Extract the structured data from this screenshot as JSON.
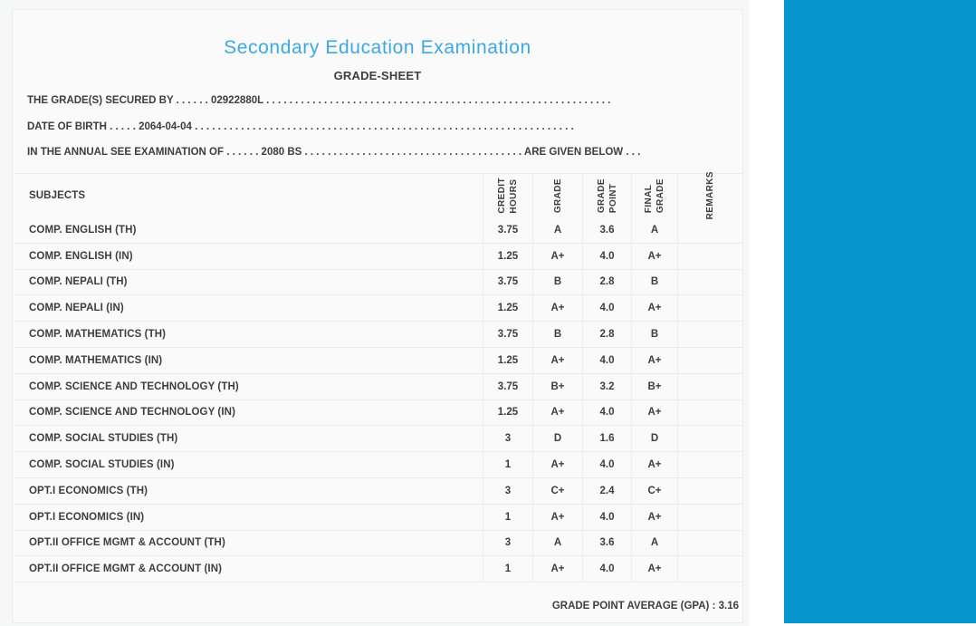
{
  "page": {
    "title": "Secondary Education Examination",
    "subtitle": "GRADE-SHEET",
    "info_lines": [
      "THE GRADE(S) SECURED BY . . . . . . 02922880L . . . . . . . . . . . . . . . . . . . . . . . . . . . . . . . . . . . . . . . . . . . . . . . . . . . . . . . . . . . .",
      "DATE OF BIRTH . . . . . 2064-04-04 . . . . . . . . . . . . . . . . . . . . . . . . . . . . . . . . . . . . . . . . . . . . . . . . . . . . . . . . . . . . . . . . . .",
      "IN THE ANNUAL SEE EXAMINATION OF . . . . . . 2080 BS . . . . . . . . . . . . . . . . . . . . . . . . . . . . . . . . . . . . . . ARE GIVEN BELOW . . ."
    ],
    "values": {
      "student_symbol_number": "02922880L",
      "date_of_birth": "2064-04-04",
      "examination_year": "2080 BS",
      "gpa": "3.16"
    }
  },
  "table": {
    "subjects_header": "SUBJECTS",
    "column_headers": [
      "CREDIT\nHOURS",
      "GRADE",
      "GRADE\nPOINT",
      "FINAL\nGRADE",
      "REMARKS"
    ],
    "rows": [
      {
        "subject": "COMP. ENGLISH (TH)",
        "credit_hours": "3.75",
        "grade": "A",
        "grade_point": "3.6",
        "final_grade": "A",
        "remarks": ""
      },
      {
        "subject": "COMP. ENGLISH (IN)",
        "credit_hours": "1.25",
        "grade": "A+",
        "grade_point": "4.0",
        "final_grade": "A+",
        "remarks": ""
      },
      {
        "subject": "COMP. NEPALI (TH)",
        "credit_hours": "3.75",
        "grade": "B",
        "grade_point": "2.8",
        "final_grade": "B",
        "remarks": ""
      },
      {
        "subject": "COMP. NEPALI (IN)",
        "credit_hours": "1.25",
        "grade": "A+",
        "grade_point": "4.0",
        "final_grade": "A+",
        "remarks": ""
      },
      {
        "subject": "COMP. MATHEMATICS (TH)",
        "credit_hours": "3.75",
        "grade": "B",
        "grade_point": "2.8",
        "final_grade": "B",
        "remarks": ""
      },
      {
        "subject": "COMP. MATHEMATICS (IN)",
        "credit_hours": "1.25",
        "grade": "A+",
        "grade_point": "4.0",
        "final_grade": "A+",
        "remarks": ""
      },
      {
        "subject": "COMP. SCIENCE AND TECHNOLOGY (TH)",
        "credit_hours": "3.75",
        "grade": "B+",
        "grade_point": "3.2",
        "final_grade": "B+",
        "remarks": ""
      },
      {
        "subject": "COMP. SCIENCE AND TECHNOLOGY (IN)",
        "credit_hours": "1.25",
        "grade": "A+",
        "grade_point": "4.0",
        "final_grade": "A+",
        "remarks": ""
      },
      {
        "subject": "COMP. SOCIAL STUDIES (TH)",
        "credit_hours": "3",
        "grade": "D",
        "grade_point": "1.6",
        "final_grade": "D",
        "remarks": ""
      },
      {
        "subject": "COMP. SOCIAL STUDIES (IN)",
        "credit_hours": "1",
        "grade": "A+",
        "grade_point": "4.0",
        "final_grade": "A+",
        "remarks": ""
      },
      {
        "subject": "OPT.I ECONOMICS (TH)",
        "credit_hours": "3",
        "grade": "C+",
        "grade_point": "2.4",
        "final_grade": "C+",
        "remarks": ""
      },
      {
        "subject": "OPT.I ECONOMICS (IN)",
        "credit_hours": "1",
        "grade": "A+",
        "grade_point": "4.0",
        "final_grade": "A+",
        "remarks": ""
      },
      {
        "subject": "OPT.II OFFICE MGMT & ACCOUNT (TH)",
        "credit_hours": "3",
        "grade": "A",
        "grade_point": "3.6",
        "final_grade": "A",
        "remarks": ""
      },
      {
        "subject": "OPT.II OFFICE MGMT & ACCOUNT (IN)",
        "credit_hours": "1",
        "grade": "A+",
        "grade_point": "4.0",
        "final_grade": "A+",
        "remarks": ""
      }
    ],
    "gpa_text": "GRADE POINT AVERAGE (GPA) : 3.16"
  },
  "colors": {
    "sidebar_blue": "#0696ce",
    "title_blue": "#3fa8e0"
  }
}
